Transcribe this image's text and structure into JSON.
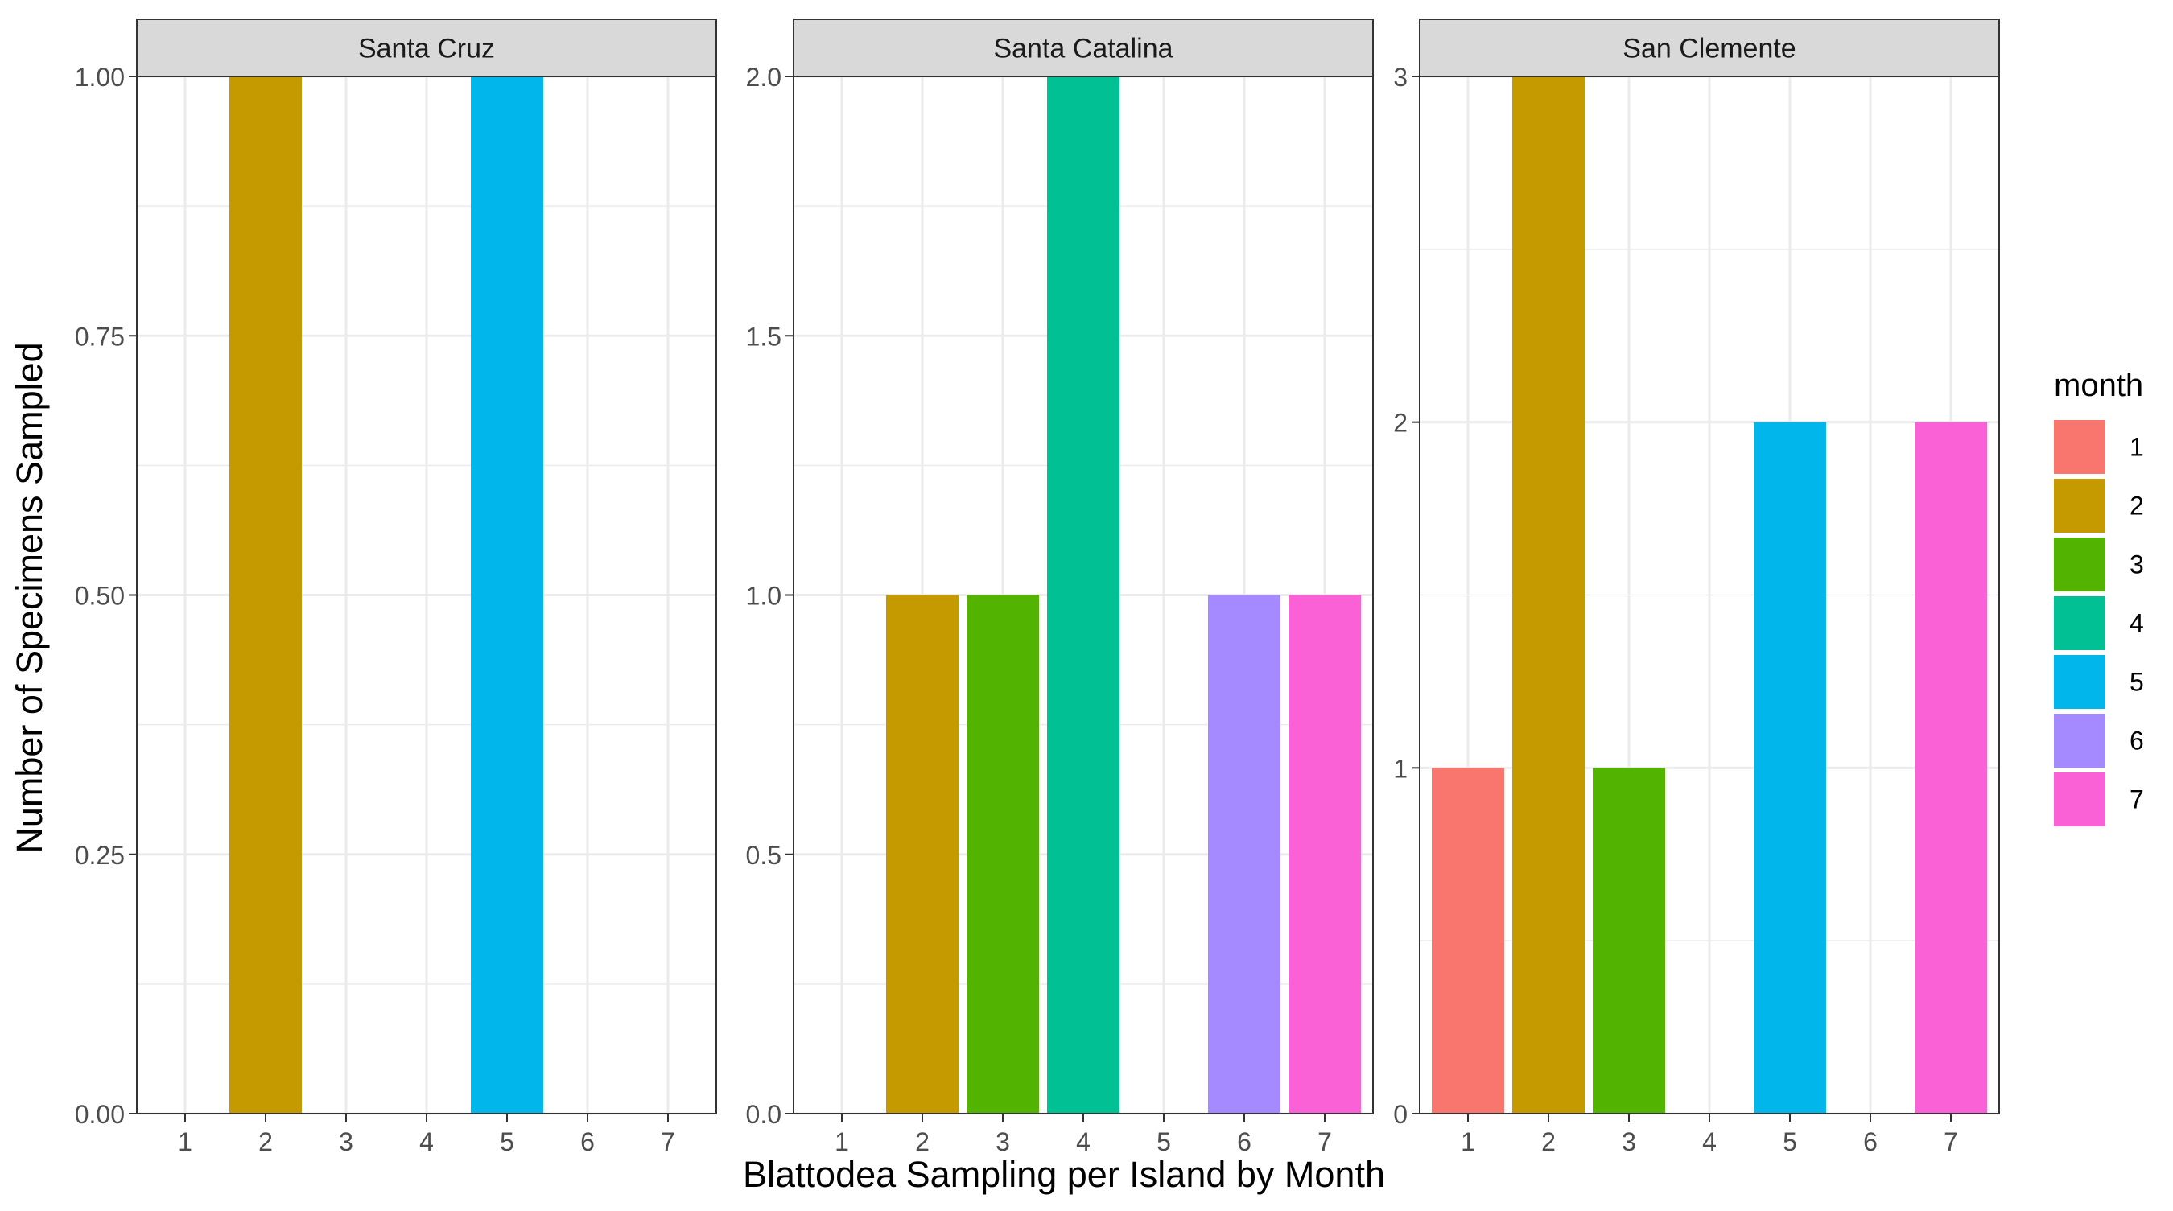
{
  "chart_data": {
    "type": "bar",
    "xlabel": "Blattodea Sampling per Island by Month",
    "ylabel": "Number of Specimens Sampled",
    "categories": [
      "1",
      "2",
      "3",
      "4",
      "5",
      "6",
      "7"
    ],
    "grid": true,
    "legend": {
      "title": "month",
      "placement": "right",
      "entries": [
        {
          "label": "1",
          "color": "#F8766D"
        },
        {
          "label": "2",
          "color": "#C49A00"
        },
        {
          "label": "3",
          "color": "#53B400"
        },
        {
          "label": "4",
          "color": "#00C094"
        },
        {
          "label": "5",
          "color": "#00B6EB"
        },
        {
          "label": "6",
          "color": "#A58AFF"
        },
        {
          "label": "7",
          "color": "#FB61D7"
        }
      ]
    },
    "facets": [
      {
        "title": "Santa Cruz",
        "ylim": [
          0,
          1
        ],
        "yticks": [
          "0.00",
          "0.25",
          "0.50",
          "0.75",
          "1.00"
        ],
        "values": [
          0,
          1,
          0,
          0,
          1,
          0,
          0
        ]
      },
      {
        "title": "Santa Catalina",
        "ylim": [
          0,
          2
        ],
        "yticks": [
          "0.0",
          "0.5",
          "1.0",
          "1.5",
          "2.0"
        ],
        "values": [
          0,
          1,
          1,
          2,
          0,
          1,
          1
        ]
      },
      {
        "title": "San Clemente",
        "ylim": [
          0,
          3
        ],
        "yticks": [
          "0",
          "1",
          "2",
          "3"
        ],
        "values": [
          1,
          3,
          1,
          0,
          2,
          0,
          2
        ]
      }
    ]
  }
}
